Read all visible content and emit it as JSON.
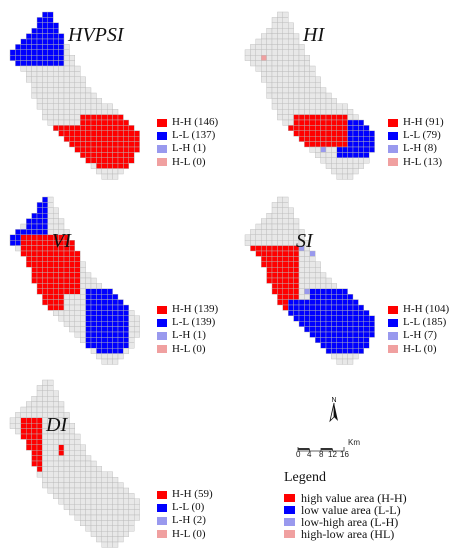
{
  "colors": {
    "HH": "#ff0000",
    "LL": "#0000ff",
    "LH": "#9999ee",
    "HL": "#f0a0a0",
    "grid": "#e8e8e8",
    "gridline": "#b8b8b8"
  },
  "panels": [
    {
      "id": "hvpsi",
      "title": "HVPSI",
      "legend": [
        "H-H (146)",
        "L-L (137)",
        "L-H (1)",
        "H-L (0)"
      ]
    },
    {
      "id": "hi",
      "title": "HI",
      "legend": [
        "H-H (91)",
        "L-L (79)",
        "L-H (8)",
        "H-L (13)"
      ]
    },
    {
      "id": "vi",
      "title": "VI",
      "legend": [
        "H-H (139)",
        "L-L (139)",
        "L-H (1)",
        "H-L (0)"
      ]
    },
    {
      "id": "si",
      "title": "SI",
      "legend": [
        "H-H (104)",
        "L-L (185)",
        "L-H (7)",
        "H-L (0)"
      ]
    },
    {
      "id": "di",
      "title": "DI",
      "legend": [
        "H-H (59)",
        "L-L (0)",
        "L-H (2)",
        "H-L (0)"
      ]
    }
  ],
  "scale_bar": {
    "labels": [
      "0",
      "4",
      "8",
      "12",
      "16"
    ],
    "unit": "Km"
  },
  "legend": {
    "title": "Legend",
    "items": [
      {
        "key": "HH",
        "label": "high value area (H-H)"
      },
      {
        "key": "LL",
        "label": "low value area (L-L)"
      },
      {
        "key": "LH",
        "label": "low-high area (L-H)"
      },
      {
        "key": "HL",
        "label": "high-low area (HL)"
      }
    ]
  }
}
